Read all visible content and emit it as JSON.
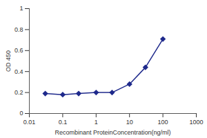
{
  "chart_data": {
    "type": "line",
    "x": [
      0.03,
      0.1,
      0.3,
      1,
      3,
      10,
      30,
      100
    ],
    "values": [
      0.19,
      0.18,
      0.19,
      0.2,
      0.2,
      0.28,
      0.44,
      0.71
    ],
    "color": "#1f2a8c",
    "marker": "diamond",
    "line_style": "solid",
    "log": "x",
    "xlim": [
      0.01,
      1000
    ],
    "xticks": [
      0.01,
      0.1,
      1,
      10,
      100,
      1000
    ],
    "ylim": [
      0,
      1
    ],
    "yticks": [
      0,
      0.2,
      0.4,
      0.6,
      0.8,
      1
    ],
    "xlabel": "Recombinant ProteinConcentration(ng/ml)",
    "ylabel": "OD 450",
    "grid": false
  }
}
